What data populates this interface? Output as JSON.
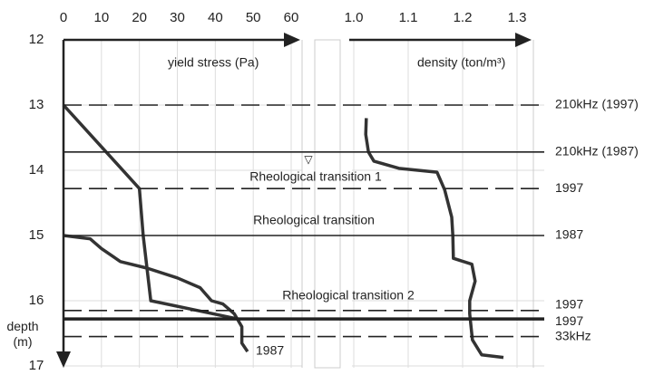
{
  "chart_data": [
    {
      "type": "line",
      "xlabel": "yield stress (Pa)",
      "xlim": [
        0,
        60
      ],
      "xticks": [
        0,
        10,
        20,
        30,
        40,
        50,
        60
      ],
      "ylabel": "depth (m)",
      "ylim": [
        12,
        17
      ],
      "yticks": [
        12,
        13,
        14,
        15,
        16,
        17
      ],
      "y_inverted": true,
      "grid": true,
      "color": "#333333",
      "series": [
        {
          "x": [
            0,
            20,
            21,
            22,
            23,
            46
          ],
          "y": [
            13.0,
            14.28,
            15.0,
            15.5,
            16.0,
            16.28
          ]
        },
        {
          "x": [
            0,
            7,
            10,
            15,
            22,
            30,
            36,
            39,
            42,
            45,
            47,
            47,
            48.5
          ],
          "y": [
            15.0,
            15.05,
            15.2,
            15.4,
            15.5,
            15.65,
            15.8,
            16.0,
            16.05,
            16.2,
            16.4,
            16.65,
            16.78
          ]
        }
      ],
      "reference_lines": [
        {
          "y": 13.0,
          "style": "dashed",
          "label": "210kHz (1997)"
        },
        {
          "y": 13.72,
          "style": "solid",
          "label": "210kHz (1987)"
        },
        {
          "y": 14.28,
          "style": "dashed",
          "label": "1997"
        },
        {
          "y": 15.0,
          "style": "solid",
          "label": "1987"
        },
        {
          "y": 16.15,
          "style": "dashed",
          "label": "1997"
        },
        {
          "y": 16.28,
          "style": "thick",
          "label": "1997"
        },
        {
          "y": 16.55,
          "style": "dashed",
          "label": "33kHz"
        }
      ],
      "annotations": [
        "Rheological transition 1",
        "Rheological transition",
        "Rheological transition 2",
        "1987"
      ]
    },
    {
      "type": "line",
      "xlabel": "density (ton/m³)",
      "xlim": [
        1.0,
        1.3
      ],
      "xticks": [
        {
          "value": 1.0,
          "label": "1.0"
        },
        1.1,
        1.2,
        1.3
      ],
      "grid": true,
      "color": "#333333",
      "series": [
        {
          "x": [
            1.023,
            1.022,
            1.027,
            1.037,
            1.083,
            1.153,
            1.167,
            1.18,
            1.182,
            1.183,
            1.217,
            1.223,
            1.213,
            1.213,
            1.218,
            1.235,
            1.275
          ],
          "y": [
            13.2,
            13.45,
            13.72,
            13.86,
            13.97,
            14.03,
            14.3,
            14.72,
            15.0,
            15.35,
            15.44,
            15.7,
            16.0,
            16.2,
            16.6,
            16.83,
            16.87
          ]
        }
      ]
    }
  ]
}
